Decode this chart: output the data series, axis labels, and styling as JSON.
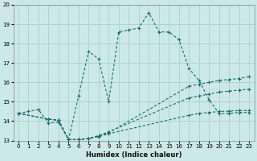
{
  "xlabel": "Humidex (Indice chaleur)",
  "background_color": "#cce8e8",
  "grid_color": "#aad0d0",
  "line_color": "#1a6b6b",
  "xlim": [
    -0.5,
    23.5
  ],
  "ylim": [
    13,
    20
  ],
  "xticks": [
    0,
    1,
    2,
    3,
    4,
    5,
    6,
    7,
    8,
    9,
    10,
    11,
    12,
    13,
    14,
    15,
    16,
    17,
    18,
    19,
    20,
    21,
    22,
    23
  ],
  "yticks": [
    13,
    14,
    15,
    16,
    17,
    18,
    19,
    20
  ],
  "series": [
    {
      "x": [
        0,
        1,
        2,
        3,
        4,
        5,
        6,
        7,
        8,
        9,
        10,
        11,
        12,
        13,
        14,
        15,
        16,
        17,
        18,
        19,
        20,
        21,
        22,
        23
      ],
      "y": [
        14.4,
        14.5,
        14.6,
        13.9,
        13.95,
        13.05,
        15.3,
        17.6,
        17.2,
        15.0,
        18.6,
        18.7,
        18.8,
        19.6,
        18.6,
        18.6,
        18.2,
        16.7,
        16.1,
        15.1,
        14.4,
        14.4,
        14.45,
        14.45
      ],
      "dashed": true
    },
    {
      "x": [
        0,
        3,
        4,
        5,
        6,
        7,
        8,
        9,
        17,
        18,
        19,
        20,
        21,
        22,
        23
      ],
      "y": [
        14.4,
        14.1,
        14.05,
        13.05,
        13.05,
        13.1,
        13.25,
        13.4,
        15.8,
        15.9,
        16.0,
        16.1,
        16.15,
        16.2,
        16.3
      ],
      "dashed": true
    },
    {
      "x": [
        0,
        3,
        4,
        5,
        6,
        7,
        8,
        9,
        17,
        18,
        19,
        20,
        21,
        22,
        23
      ],
      "y": [
        14.4,
        14.1,
        14.05,
        13.05,
        13.05,
        13.1,
        13.25,
        13.45,
        15.2,
        15.3,
        15.4,
        15.5,
        15.55,
        15.6,
        15.65
      ],
      "dashed": true
    },
    {
      "x": [
        0,
        3,
        4,
        5,
        6,
        7,
        8,
        9,
        17,
        18,
        19,
        20,
        21,
        22,
        23
      ],
      "y": [
        14.4,
        14.1,
        14.05,
        13.05,
        13.05,
        13.1,
        13.2,
        13.35,
        14.3,
        14.4,
        14.45,
        14.5,
        14.52,
        14.55,
        14.55
      ],
      "dashed": true
    }
  ]
}
